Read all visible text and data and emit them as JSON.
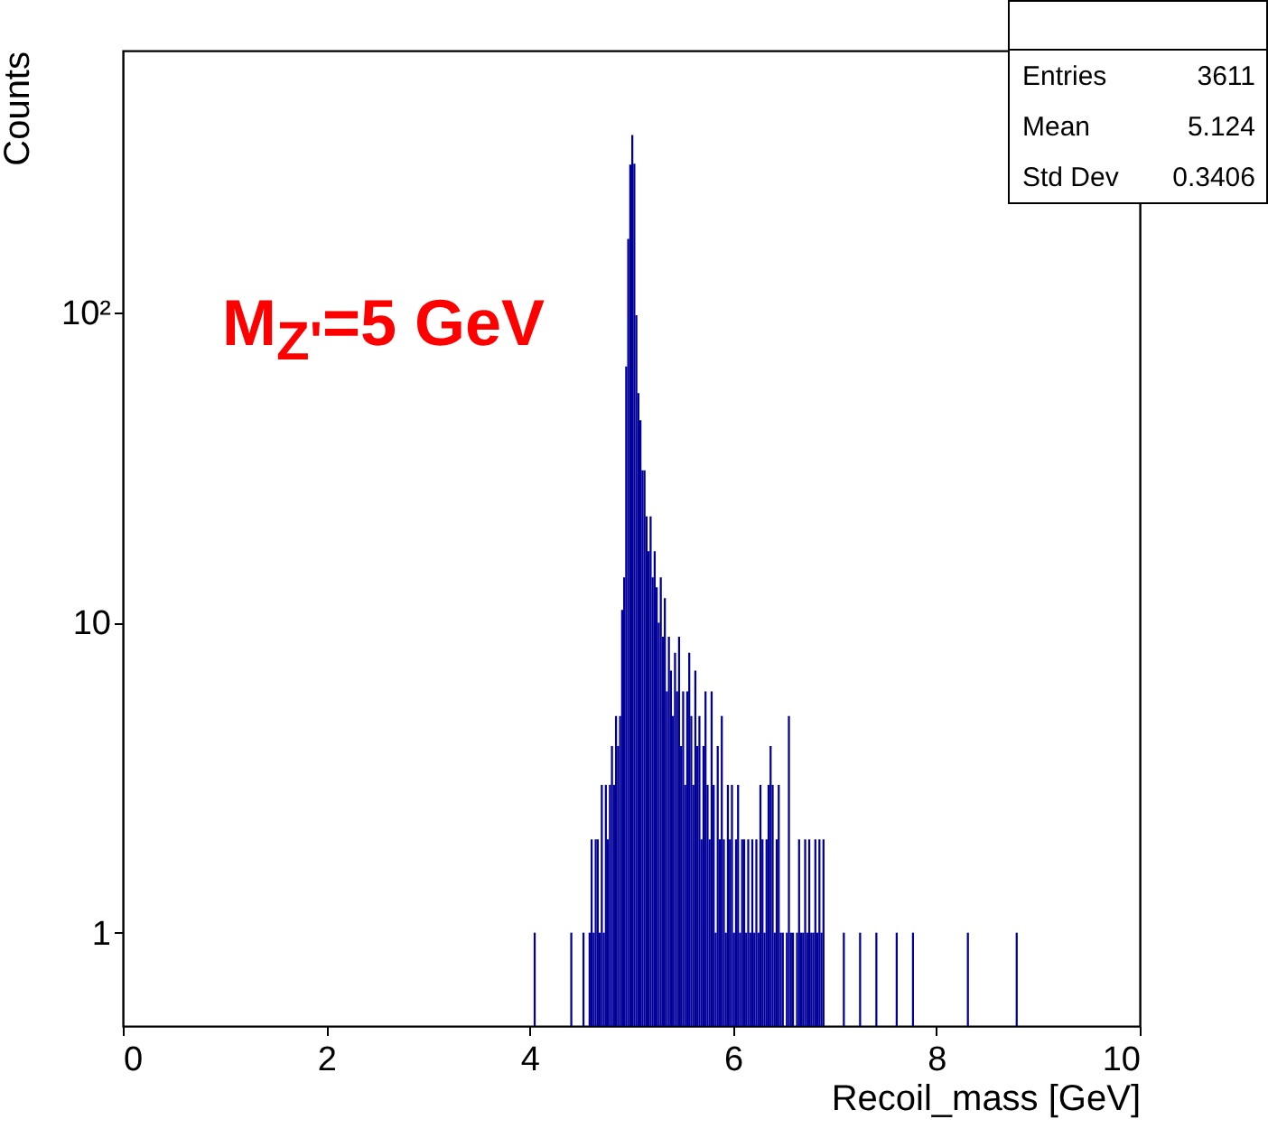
{
  "chart_data": {
    "type": "histogram",
    "xlabel": "Recoil_mass [GeV]",
    "ylabel": "Counts",
    "color": "#000099",
    "log": "y",
    "grid": false,
    "xlim": [
      0,
      10
    ],
    "xticks": [
      0,
      2,
      4,
      6,
      8,
      10
    ],
    "ylim": [
      0.5,
      700
    ],
    "yticks": [
      1,
      10,
      {
        "value": 100,
        "label": "10²"
      }
    ],
    "annotations": [
      "M$_{Z'}$=5 GeV",
      "Entries 3611",
      "Mean 5.124",
      "Std Dev 0.3406"
    ],
    "bins": [
      4.04,
      4.06,
      4.4,
      4.42,
      4.52,
      4.54,
      4.58,
      4.6,
      4.62,
      4.64,
      4.66,
      4.68,
      4.7,
      4.72,
      4.74,
      4.76,
      4.78,
      4.8,
      4.82,
      4.84,
      4.86,
      4.88,
      4.9,
      4.92,
      4.94,
      4.96,
      4.98,
      5.0,
      5.02,
      5.04,
      5.06,
      5.08,
      5.1,
      5.12,
      5.14,
      5.16,
      5.18,
      5.2,
      5.22,
      5.24,
      5.26,
      5.28,
      5.3,
      5.32,
      5.34,
      5.36,
      5.38,
      5.4,
      5.42,
      5.44,
      5.46,
      5.48,
      5.5,
      5.52,
      5.54,
      5.56,
      5.58,
      5.6,
      5.62,
      5.64,
      5.66,
      5.68,
      5.7,
      5.72,
      5.74,
      5.76,
      5.78,
      5.8,
      5.82,
      5.84,
      5.86,
      5.88,
      5.9,
      5.92,
      5.94,
      5.96,
      5.98,
      6.0,
      6.02,
      6.04,
      6.06,
      6.08,
      6.1,
      6.12,
      6.14,
      6.16,
      6.18,
      6.2,
      6.22,
      6.24,
      6.26,
      6.28,
      6.3,
      6.32,
      6.34,
      6.36,
      6.38,
      6.4,
      6.42,
      6.44,
      6.46,
      6.48,
      6.5,
      6.52,
      6.54,
      6.56,
      6.58,
      6.6,
      6.62,
      6.64,
      6.66,
      6.68,
      6.7,
      6.72,
      6.74,
      6.76,
      6.78,
      6.8,
      6.82,
      6.84,
      6.86,
      6.88,
      6.9,
      7.08,
      7.1,
      7.24,
      7.26,
      7.4,
      7.42,
      7.6,
      7.62,
      7.76,
      7.78,
      8.3,
      8.32,
      8.78,
      8.8
    ],
    "values": [
      1,
      null,
      1,
      null,
      1,
      null,
      1,
      2,
      1,
      2,
      2,
      1,
      3,
      1,
      3,
      2,
      3,
      4,
      3,
      5,
      4,
      5,
      11,
      14,
      67,
      173,
      300,
      374,
      302,
      98,
      55,
      45,
      31,
      31,
      22,
      17,
      22,
      14,
      17,
      13,
      10,
      14,
      9,
      12,
      6,
      9,
      7,
      5,
      8,
      6,
      9,
      4,
      6,
      3,
      6,
      8,
      5,
      3,
      7,
      4,
      5,
      2,
      4,
      6,
      3,
      2,
      6,
      3,
      1,
      4,
      2,
      5,
      2,
      1,
      3,
      2,
      3,
      1,
      2,
      3,
      1,
      2,
      2,
      1,
      2,
      1,
      2,
      1,
      2,
      1,
      3,
      2,
      1,
      2,
      3,
      4,
      3,
      1,
      2,
      3,
      1,
      1,
      null,
      1,
      5,
      1,
      1,
      null,
      1,
      2,
      1,
      1,
      2,
      1,
      2,
      1,
      1,
      2,
      1,
      2,
      1,
      2,
      null,
      1,
      null,
      1,
      null,
      1,
      null,
      1,
      null,
      1,
      null,
      1,
      null,
      1
    ]
  }
}
